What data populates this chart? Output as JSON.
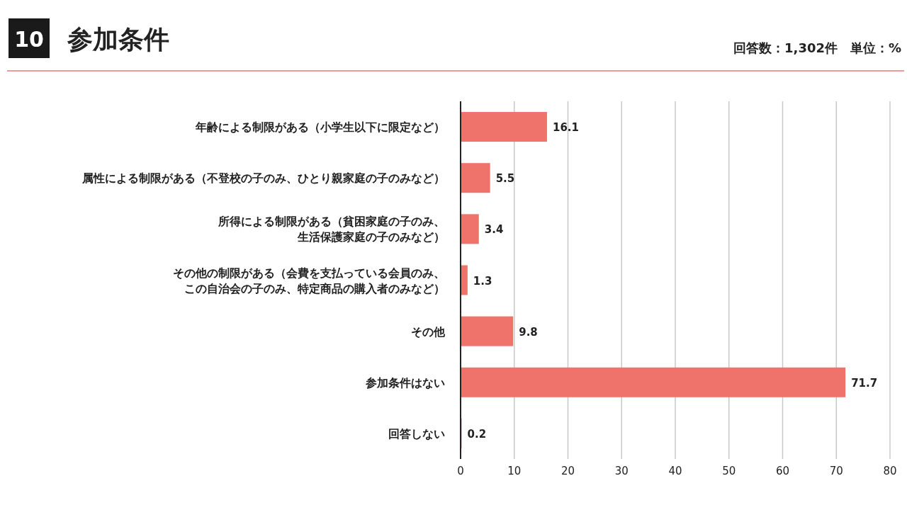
{
  "chart_data": {
    "type": "bar",
    "orientation": "horizontal",
    "title": "参加条件",
    "annotations": [
      "10",
      "回答数：1,302件　単位：%"
    ],
    "categories": [
      "年齢による制限がある（小学生以下に限定など）",
      "属性による制限がある（不登校の子のみ、ひとり親家庭の子のみなど）",
      "所得による制限がある（貧困家庭の子のみ、生活保護家庭の子のみなど）",
      "その他の制限がある（会費を支払っている会員のみ、この自治会の子のみ、特定商品の購入者のみなど）",
      "その他",
      "参加条件はない",
      "回答しない"
    ],
    "values": [
      16.1,
      5.5,
      3.4,
      1.3,
      9.8,
      71.7,
      0.2
    ],
    "color": "#f0736b",
    "xlim": [
      0,
      80
    ],
    "xticks": [
      0,
      10,
      20,
      30,
      40,
      50,
      60,
      70,
      80
    ],
    "grid": "x",
    "data_labels": true
  }
}
